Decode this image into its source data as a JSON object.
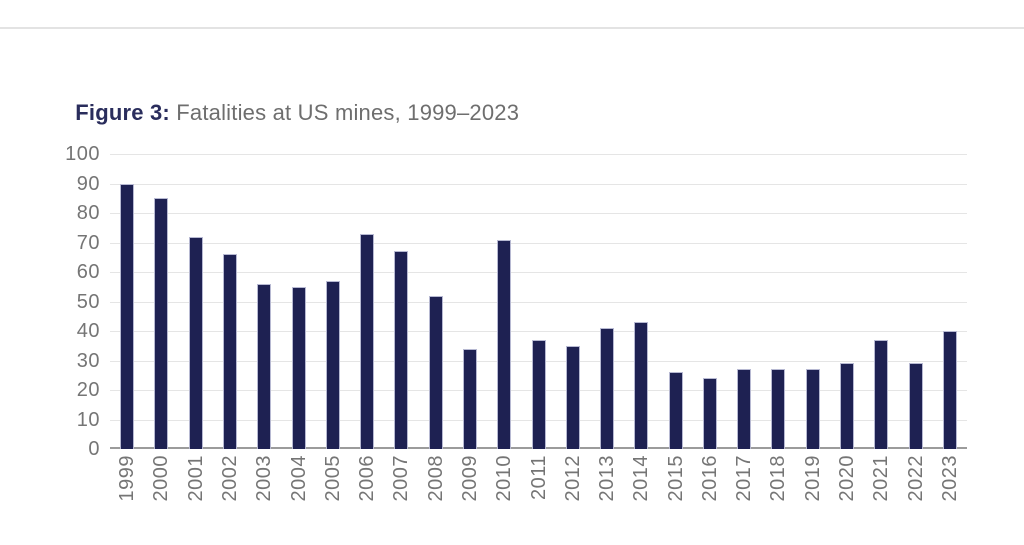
{
  "figure": {
    "label": "Figure 3:",
    "title": " Fatalities at US mines, 1999–2023"
  },
  "chart_data": {
    "type": "bar",
    "title": "Fatalities at US mines, 1999–2023",
    "categories": [
      "1999",
      "2000",
      "2001",
      "2002",
      "2003",
      "2004",
      "2005",
      "2006",
      "2007",
      "2008",
      "2009",
      "2010",
      "2011",
      "2012",
      "2013",
      "2014",
      "2015",
      "2016",
      "2017",
      "2018",
      "2019",
      "2020",
      "2021",
      "2022",
      "2023"
    ],
    "values": [
      90,
      85,
      72,
      66,
      56,
      55,
      57,
      73,
      67,
      52,
      34,
      71,
      37,
      35,
      41,
      43,
      26,
      24,
      27,
      27,
      27,
      29,
      37,
      29,
      40
    ],
    "xlabel": "",
    "ylabel": "",
    "ylim": [
      0,
      100
    ],
    "ytick_step": 10,
    "grid": true,
    "legend": false,
    "colors": {
      "bar": "#1e2152",
      "bar_border": "#b7b9d2",
      "gridline": "#e5e5e5",
      "axis_line": "#9b9b9b",
      "tick_label": "#757575",
      "title_label": "#2a2d5c",
      "title_text": "#6e6e6e",
      "top_rule": "#e3e3e3"
    }
  }
}
